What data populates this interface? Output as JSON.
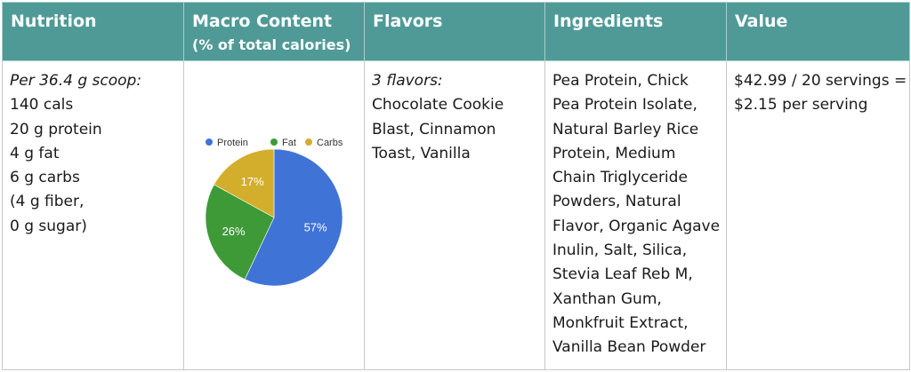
{
  "headers": {
    "nutrition": "Nutrition",
    "macro_title": "Macro Content",
    "macro_sub": "(% of total calories)",
    "flavors": "Flavors",
    "ingredients": "Ingredients",
    "value": "Value"
  },
  "nutrition": {
    "serving": "Per 36.4 g scoop:",
    "lines": [
      "140 cals",
      "20 g protein",
      "4 g fat",
      "6 g carbs",
      "(4 g fiber,",
      "0 g sugar)"
    ]
  },
  "flavors": {
    "count": "3 flavors:",
    "list_lines": [
      "Chocolate Cookie",
      "Blast, Cinnamon",
      "Toast, Vanilla"
    ]
  },
  "ingredients": {
    "lines": [
      "Pea Protein, Chick",
      "Pea Protein Isolate,",
      "Natural Barley Rice",
      "Protein, Medium",
      "Chain Triglyceride",
      "Powders, Natural",
      "Flavor, Organic Agave",
      "Inulin, Salt, Silica,",
      "Stevia Leaf Reb M,",
      "Xanthan Gum,",
      "Monkfruit Extract,",
      "Vanilla Bean Powder"
    ]
  },
  "value": {
    "lines": [
      "$42.99 / 20 servings =",
      "$2.15 per serving"
    ]
  },
  "chart_data": {
    "type": "pie",
    "categories": [
      "Protein",
      "Fat",
      "Carbs"
    ],
    "values": [
      57,
      26,
      17
    ],
    "labels": [
      "57%",
      "26%",
      "17%"
    ],
    "colors": [
      "#3f73d6",
      "#3e9a37",
      "#d3ae2c"
    ],
    "legend_position": "top"
  }
}
